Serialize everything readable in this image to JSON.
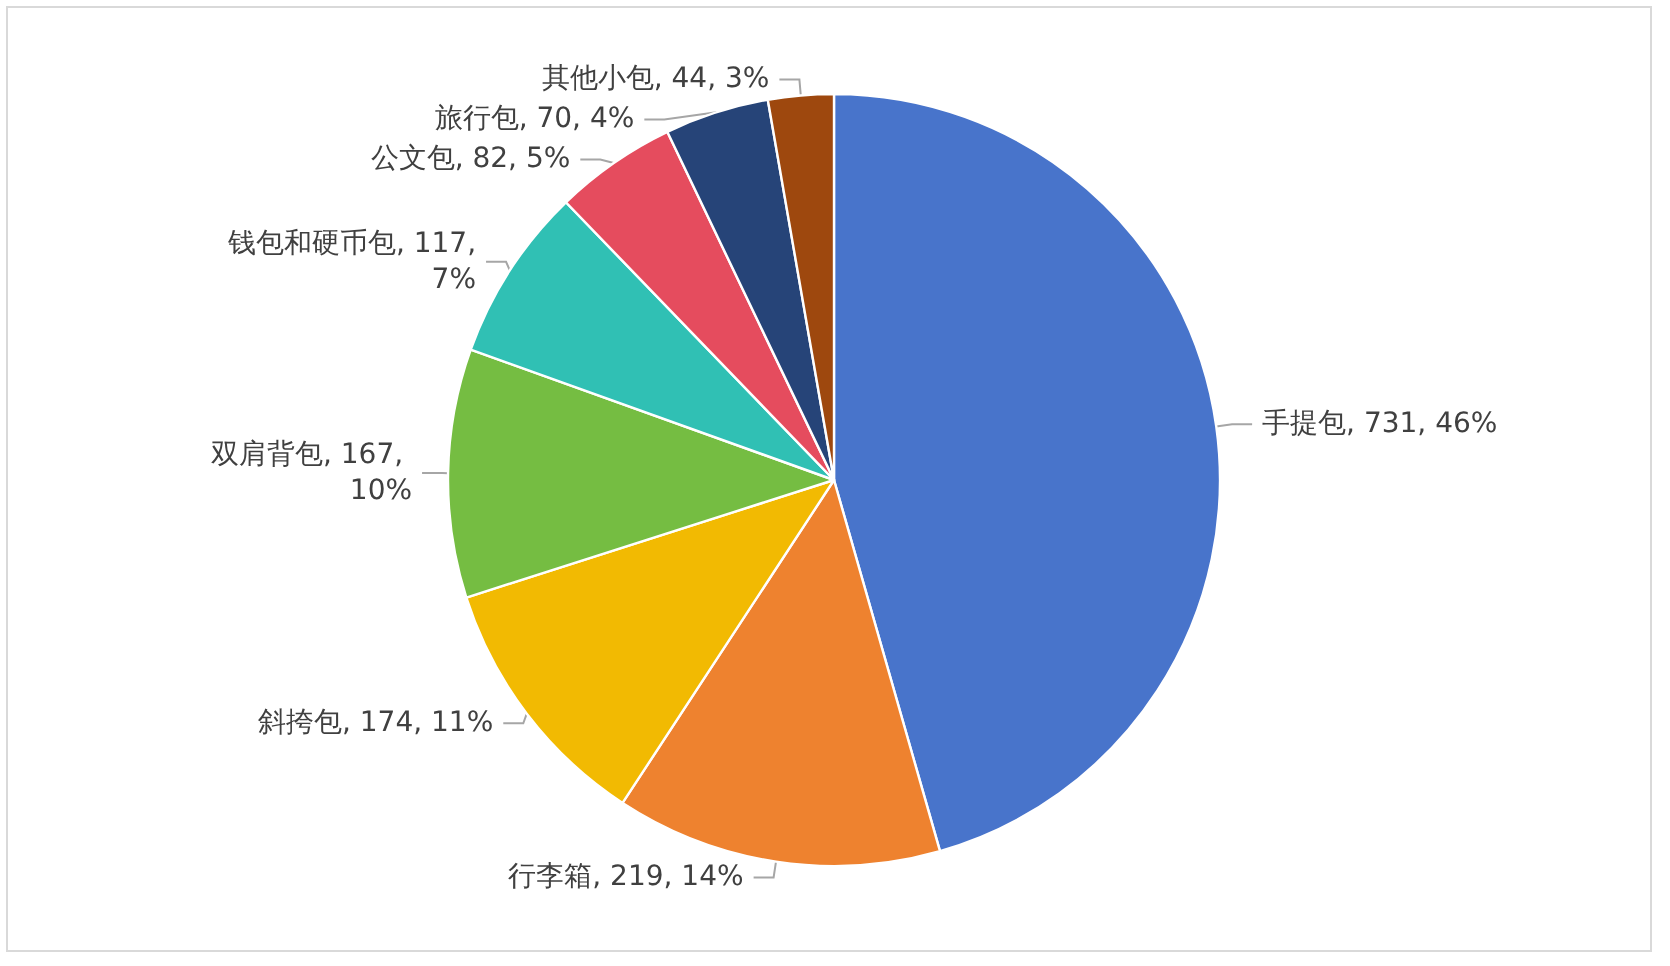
{
  "chart_data": {
    "type": "pie",
    "categories": [
      "手提包",
      "行李箱",
      "斜挎包",
      "双肩背包",
      "钱包和硬币包",
      "公文包",
      "旅行包",
      "其他小包"
    ],
    "values": [
      731,
      219,
      174,
      167,
      117,
      82,
      70,
      44
    ],
    "colors": [
      "#4874cb",
      "#ee822f",
      "#f2ba02",
      "#75bd42",
      "#30c0b4",
      "#e54c5e",
      "#264478",
      "#9e480e"
    ],
    "value_labels": [
      "731, 46%",
      "219, 14%",
      "174, 11%",
      "167, 10%",
      "117, 7%",
      "82, 5%",
      "70, 4%",
      "44, 3%"
    ]
  }
}
